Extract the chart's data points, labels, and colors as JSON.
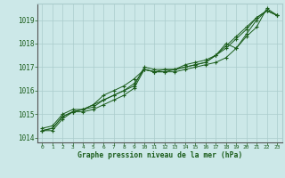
{
  "xlabel": "Graphe pression niveau de la mer (hPa)",
  "x_ticks": [
    0,
    1,
    2,
    3,
    4,
    5,
    6,
    7,
    8,
    9,
    10,
    11,
    12,
    13,
    14,
    15,
    16,
    17,
    18,
    19,
    20,
    21,
    22,
    23
  ],
  "ylim": [
    1013.8,
    1019.7
  ],
  "xlim": [
    -0.5,
    23.5
  ],
  "yticks": [
    1014,
    1015,
    1016,
    1017,
    1018,
    1019
  ],
  "bg_color": "#cce8e8",
  "grid_color": "#aacccc",
  "line_color": "#1a5c1a",
  "marker_color": "#1a5c1a",
  "series": [
    [
      1014.3,
      1014.3,
      1014.8,
      1015.1,
      1015.1,
      1015.2,
      1015.4,
      1015.6,
      1015.8,
      1016.1,
      1016.9,
      1016.8,
      1016.8,
      1016.8,
      1016.9,
      1017.0,
      1017.1,
      1017.2,
      1017.4,
      1017.8,
      1018.4,
      1019.0,
      1019.4,
      1019.2
    ],
    [
      1014.3,
      1014.4,
      1014.9,
      1015.1,
      1015.2,
      1015.3,
      1015.6,
      1015.8,
      1016.0,
      1016.2,
      1017.0,
      1016.9,
      1016.9,
      1016.9,
      1017.0,
      1017.1,
      1017.2,
      1017.5,
      1017.8,
      1018.2,
      1018.6,
      1019.1,
      1019.4,
      1019.2
    ],
    [
      1014.3,
      1014.4,
      1014.9,
      1015.1,
      1015.2,
      1015.4,
      1015.8,
      1016.0,
      1016.2,
      1016.5,
      1016.9,
      1016.8,
      1016.8,
      1016.9,
      1017.1,
      1017.2,
      1017.3,
      1017.5,
      1018.0,
      1017.8,
      1018.3,
      1018.7,
      1019.5,
      1019.2
    ],
    [
      1014.4,
      1014.5,
      1015.0,
      1015.2,
      1015.2,
      1015.4,
      1015.6,
      1015.8,
      1016.0,
      1016.3,
      1016.9,
      1016.8,
      1016.9,
      1016.9,
      1017.0,
      1017.1,
      1017.2,
      1017.5,
      1017.9,
      1018.3,
      1018.7,
      1019.1,
      1019.4,
      1019.2
    ]
  ]
}
